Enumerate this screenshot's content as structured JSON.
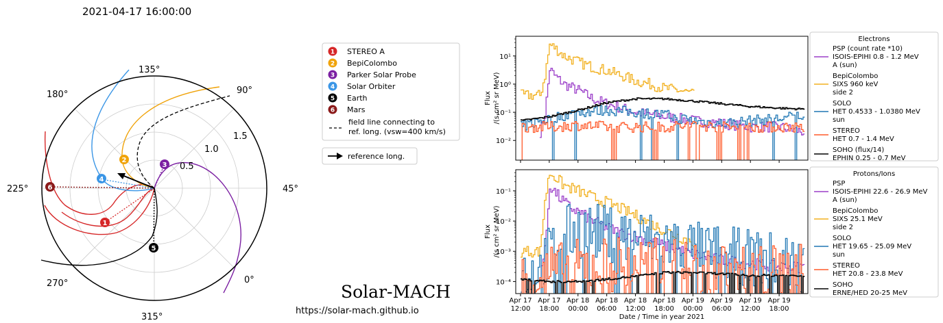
{
  "timestamp": "2021-04-17 16:00:00",
  "brand": {
    "title": "Solar-MACH",
    "url": "https://solar-mach.github.io"
  },
  "legend": {
    "bodies": [
      {
        "num": "1",
        "label": "STEREO A",
        "color": "#d62728"
      },
      {
        "num": "2",
        "label": "BepiColombo",
        "color": "#f0a30a"
      },
      {
        "num": "3",
        "label": "Parker Solar Probe",
        "color": "#7b1fa2"
      },
      {
        "num": "4",
        "label": "Solar Orbiter",
        "color": "#3b96e6"
      },
      {
        "num": "5",
        "label": "Earth",
        "color": "#000000"
      },
      {
        "num": "6",
        "label": "Mars",
        "color": "#8b1a1a"
      }
    ],
    "field_line_label_1": "field line connecting to",
    "field_line_label_2": "ref. long. (vsw=400 km/s)",
    "reference_label": "reference long."
  },
  "polar": {
    "angle_labels": [
      "45°",
      "90°",
      "135°",
      "180°",
      "225°",
      "270°",
      "315°",
      "0°"
    ],
    "radial_labels": [
      "0.5",
      "1.0",
      "1.5"
    ],
    "markers": [
      {
        "num": "1",
        "color": "#d62728"
      },
      {
        "num": "2",
        "color": "#f0a30a"
      },
      {
        "num": "3",
        "color": "#7b1fa2"
      },
      {
        "num": "4",
        "color": "#3b96e6"
      },
      {
        "num": "5",
        "color": "#000000"
      },
      {
        "num": "6",
        "color": "#8b1a1a"
      }
    ]
  },
  "electrons": {
    "legend_title": "Electrons",
    "ylabel_1": "Flux",
    "ylabel_2": "/(s cm² sr MeV)",
    "ytick_labels": [
      "10¹",
      "10⁰",
      "10⁻¹",
      "10⁻²"
    ],
    "entries": [
      {
        "lines": [
          "PSP (count rate *10)",
          "ISOIS-EPIHI 0.8 - 1.2 MeV",
          "A (sun)"
        ],
        "color": "#9b3fc9"
      },
      {
        "lines": [
          "BepiColombo",
          "SIXS 960 keV",
          "side 2"
        ],
        "color": "#f2b01e"
      },
      {
        "lines": [
          "SOLO",
          "HET 0.4533 - 1.0380 MeV",
          "sun"
        ],
        "color": "#1f77b4"
      },
      {
        "lines": [
          "STEREO",
          "HET 0.7 - 1.4 MeV"
        ],
        "color": "#ff5a2a"
      },
      {
        "lines": [
          "SOHO (flux/14)",
          "EPHIN 0.25 - 0.7 MeV"
        ],
        "color": "#000000"
      }
    ]
  },
  "protons": {
    "legend_title": "Protons/Ions",
    "ylabel_1": "Flux",
    "ylabel_2": "/(s cm² sr MeV)",
    "ytick_labels": [
      "10⁻¹",
      "10⁻²",
      "10⁻³",
      "10⁻⁴"
    ],
    "entries": [
      {
        "lines": [
          "PSP",
          "ISOIS-EPIHI 22.6 - 26.9 MeV",
          "A (sun)"
        ],
        "color": "#9b3fc9"
      },
      {
        "lines": [
          "BepiColombo",
          "SIXS 25.1 MeV",
          "side 2"
        ],
        "color": "#f2b01e"
      },
      {
        "lines": [
          "SOLO",
          "HET 19.65 - 25.09 MeV",
          "sun"
        ],
        "color": "#1f77b4"
      },
      {
        "lines": [
          "STEREO",
          "HET 20.8 - 23.8 MeV"
        ],
        "color": "#ff5a2a"
      },
      {
        "lines": [
          "SOHO",
          "ERNE/HED 20-25 MeV"
        ],
        "color": "#000000"
      }
    ]
  },
  "xaxis": {
    "label": "Date / Time in year 2021",
    "ticks": [
      {
        "l1": "Apr 17",
        "l2": "12:00"
      },
      {
        "l1": "Apr 17",
        "l2": "18:00"
      },
      {
        "l1": "Apr 18",
        "l2": "00:00"
      },
      {
        "l1": "Apr 18",
        "l2": "06:00"
      },
      {
        "l1": "Apr 18",
        "l2": "12:00"
      },
      {
        "l1": "Apr 18",
        "l2": "18:00"
      },
      {
        "l1": "Apr 19",
        "l2": "00:00"
      },
      {
        "l1": "Apr 19",
        "l2": "06:00"
      },
      {
        "l1": "Apr 19",
        "l2": "12:00"
      },
      {
        "l1": "Apr 19",
        "l2": "18:00"
      }
    ]
  },
  "chart_data": [
    {
      "type": "line",
      "title": "Electrons",
      "ylabel": "Flux /(s cm² sr MeV)",
      "yscale": "log",
      "ylim": [
        0.002,
        50
      ],
      "xlabel": "Date / Time in year 2021",
      "xlim": [
        "2021-04-17 11:00",
        "2021-04-20 00:00"
      ],
      "series": [
        {
          "name": "PSP (count rate *10) ISOIS-EPIHI 0.8 - 1.2 MeV A (sun)",
          "color": "#9b3fc9",
          "x": [
            "2021-04-17 16:00",
            "2021-04-17 17:00",
            "2021-04-17 18:00",
            "2021-04-17 19:00",
            "2021-04-17 21:00",
            "2021-04-18 00:00",
            "2021-04-18 03:00",
            "2021-04-18 06:00",
            "2021-04-18 12:00",
            "2021-04-18 18:00",
            "2021-04-19 00:00",
            "2021-04-19 06:00",
            "2021-04-19 12:00",
            "2021-04-19 18:00",
            "2021-04-19 23:00"
          ],
          "y": [
            0.02,
            0.08,
            3.5,
            2.0,
            1.0,
            0.6,
            0.3,
            0.2,
            0.1,
            0.07,
            0.05,
            0.04,
            0.03,
            0.03,
            0.02
          ]
        },
        {
          "name": "BepiColombo SIXS 960 keV side 2",
          "color": "#f2b01e",
          "x": [
            "2021-04-17 12:00",
            "2021-04-17 16:00",
            "2021-04-17 17:00",
            "2021-04-17 18:00",
            "2021-04-17 19:00",
            "2021-04-17 21:00",
            "2021-04-18 00:00",
            "2021-04-18 03:00",
            "2021-04-18 06:00",
            "2021-04-18 09:00",
            "2021-04-18 12:00",
            "2021-04-18 15:00",
            "2021-04-18 18:00",
            "2021-04-18 21:00",
            "2021-04-19 00:00"
          ],
          "y": [
            0.4,
            0.4,
            2.0,
            25,
            20,
            10,
            6,
            4,
            3,
            2,
            1.3,
            1.0,
            0.7,
            0.6,
            0.45
          ]
        },
        {
          "name": "SOLO HET 0.4533 - 1.0380 MeV sun",
          "color": "#1f77b4",
          "x": [
            "2021-04-17 12:00",
            "2021-04-17 16:00",
            "2021-04-17 18:00",
            "2021-04-18 00:00",
            "2021-04-18 06:00",
            "2021-04-18 12:00",
            "2021-04-18 18:00",
            "2021-04-19 00:00",
            "2021-04-19 06:00",
            "2021-04-19 12:00",
            "2021-04-19 18:00",
            "2021-04-19 23:00"
          ],
          "y": [
            0.03,
            0.05,
            0.06,
            0.1,
            0.12,
            0.1,
            0.08,
            0.05,
            0.04,
            0.05,
            0.06,
            0.08
          ]
        },
        {
          "name": "STEREO HET 0.7 - 1.4 MeV",
          "color": "#ff5a2a",
          "x": [
            "2021-04-17 12:00",
            "2021-04-17 18:00",
            "2021-04-18 00:00",
            "2021-04-18 06:00",
            "2021-04-18 12:00",
            "2021-04-18 18:00",
            "2021-04-19 00:00",
            "2021-04-19 06:00",
            "2021-04-19 12:00",
            "2021-04-19 18:00",
            "2021-04-19 23:00"
          ],
          "y": [
            0.03,
            0.03,
            0.035,
            0.03,
            0.03,
            0.03,
            0.035,
            0.03,
            0.03,
            0.03,
            0.03
          ]
        },
        {
          "name": "SOHO (flux/14) EPHIN 0.25 - 0.7 MeV",
          "color": "#000000",
          "x": [
            "2021-04-17 12:00",
            "2021-04-17 18:00",
            "2021-04-18 00:00",
            "2021-04-18 06:00",
            "2021-04-18 12:00",
            "2021-04-18 18:00",
            "2021-04-19 00:00",
            "2021-04-19 06:00",
            "2021-04-19 12:00",
            "2021-04-19 18:00",
            "2021-04-19 23:00"
          ],
          "y": [
            0.05,
            0.07,
            0.12,
            0.22,
            0.3,
            0.3,
            0.25,
            0.2,
            0.16,
            0.14,
            0.13
          ]
        }
      ]
    },
    {
      "type": "line",
      "title": "Protons/Ions",
      "ylabel": "Flux /(s cm² sr MeV)",
      "yscale": "log",
      "ylim": [
        4e-05,
        0.5
      ],
      "xlabel": "Date / Time in year 2021",
      "xlim": [
        "2021-04-17 11:00",
        "2021-04-20 00:00"
      ],
      "series": [
        {
          "name": "PSP ISOIS-EPIHI 22.6 - 26.9 MeV A (sun)",
          "color": "#9b3fc9",
          "x": [
            "2021-04-17 16:00",
            "2021-04-17 17:00",
            "2021-04-17 18:00",
            "2021-04-17 20:00",
            "2021-04-17 22:00",
            "2021-04-18 00:00",
            "2021-04-18 03:00",
            "2021-04-18 06:00",
            "2021-04-18 09:00",
            "2021-04-18 12:00",
            "2021-04-18 18:00",
            "2021-04-19 00:00",
            "2021-04-19 06:00",
            "2021-04-19 12:00",
            "2021-04-19 18:00",
            "2021-04-19 23:00"
          ],
          "y": [
            0.0002,
            0.001,
            0.15,
            0.06,
            0.03,
            0.02,
            0.01,
            0.006,
            0.004,
            0.003,
            0.0015,
            0.0008,
            0.0005,
            0.0004,
            0.0003,
            0.0003
          ]
        },
        {
          "name": "BepiColombo SIXS 25.1 MeV side 2",
          "color": "#f2b01e",
          "x": [
            "2021-04-17 12:00",
            "2021-04-17 16:00",
            "2021-04-17 17:00",
            "2021-04-17 18:00",
            "2021-04-17 19:00",
            "2021-04-17 21:00",
            "2021-04-18 00:00",
            "2021-04-18 03:00",
            "2021-04-18 06:00",
            "2021-04-18 09:00",
            "2021-04-18 12:00",
            "2021-04-18 15:00",
            "2021-04-18 18:00",
            "2021-04-18 21:00",
            "2021-04-19 00:00"
          ],
          "y": [
            0.001,
            0.001,
            0.05,
            0.4,
            0.3,
            0.15,
            0.1,
            0.06,
            0.04,
            0.025,
            0.015,
            0.008,
            0.005,
            0.003,
            0.002
          ]
        },
        {
          "name": "SOLO HET 19.65 - 25.09 MeV sun",
          "color": "#1f77b4",
          "x": [
            "2021-04-17 12:00",
            "2021-04-17 16:00",
            "2021-04-17 18:00",
            "2021-04-17 21:00",
            "2021-04-18 00:00",
            "2021-04-18 06:00",
            "2021-04-18 12:00",
            "2021-04-18 18:00",
            "2021-04-19 00:00",
            "2021-04-19 06:00",
            "2021-04-19 12:00",
            "2021-04-19 18:00",
            "2021-04-19 23:00"
          ],
          "y": [
            0.0002,
            0.0002,
            0.001,
            0.004,
            0.005,
            0.004,
            0.003,
            0.002,
            0.0012,
            0.0008,
            0.0006,
            0.0005,
            0.0004
          ]
        },
        {
          "name": "STEREO HET 20.8 - 23.8 MeV",
          "color": "#ff5a2a",
          "x": [
            "2021-04-17 12:00",
            "2021-04-17 18:00",
            "2021-04-18 00:00",
            "2021-04-18 06:00",
            "2021-04-18 12:00",
            "2021-04-18 18:00",
            "2021-04-19 00:00",
            "2021-04-19 06:00",
            "2021-04-19 12:00",
            "2021-04-19 18:00",
            "2021-04-19 23:00"
          ],
          "y": [
            0.0001,
            0.0002,
            0.0003,
            0.0004,
            0.0004,
            0.0003,
            0.0003,
            0.0003,
            0.0002,
            0.0002,
            0.0002
          ]
        },
        {
          "name": "SOHO ERNE/HED 20-25 MeV",
          "color": "#000000",
          "x": [
            "2021-04-17 12:00",
            "2021-04-17 18:00",
            "2021-04-18 00:00",
            "2021-04-18 06:00",
            "2021-04-18 12:00",
            "2021-04-18 18:00",
            "2021-04-19 00:00",
            "2021-04-19 06:00",
            "2021-04-19 12:00",
            "2021-04-19 18:00",
            "2021-04-19 23:00"
          ],
          "y": [
            0.00012,
            0.0001,
            0.0001,
            0.00012,
            0.00015,
            0.0002,
            0.0002,
            0.00018,
            0.00016,
            0.00016,
            0.00015
          ]
        }
      ]
    }
  ]
}
